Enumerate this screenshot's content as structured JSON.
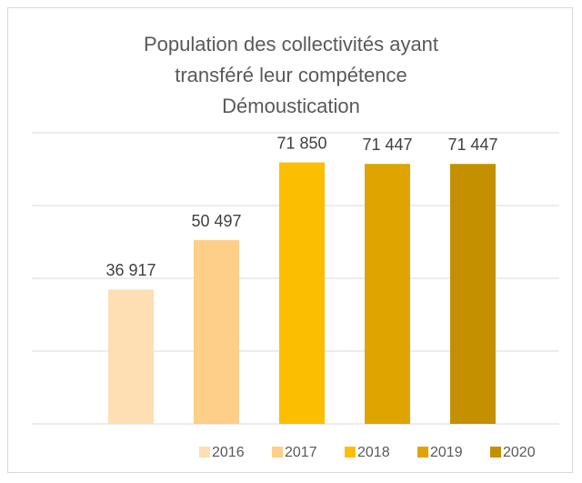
{
  "chart_data": {
    "type": "bar",
    "title": "Population des collectivités ayant transféré leur compétence Démoustication",
    "series": [
      {
        "name": "2016",
        "color": "#fddfb3",
        "values": [
          36917
        ],
        "value_labels": [
          "36 917"
        ]
      },
      {
        "name": "2017",
        "color": "#fdcf88",
        "values": [
          50497
        ],
        "value_labels": [
          "50 497"
        ]
      },
      {
        "name": "2018",
        "color": "#fcbe00",
        "values": [
          71850
        ],
        "value_labels": [
          "71 850"
        ]
      },
      {
        "name": "2019",
        "color": "#e0a400",
        "values": [
          71447
        ],
        "value_labels": [
          "71 447"
        ]
      },
      {
        "name": "2020",
        "color": "#c49000",
        "values": [
          71447
        ],
        "value_labels": [
          "71 447"
        ]
      }
    ],
    "ylim": [
      0,
      80000
    ],
    "yticks": [
      0,
      20000,
      40000,
      60000,
      80000
    ],
    "grid": true,
    "legend": "bottom"
  }
}
